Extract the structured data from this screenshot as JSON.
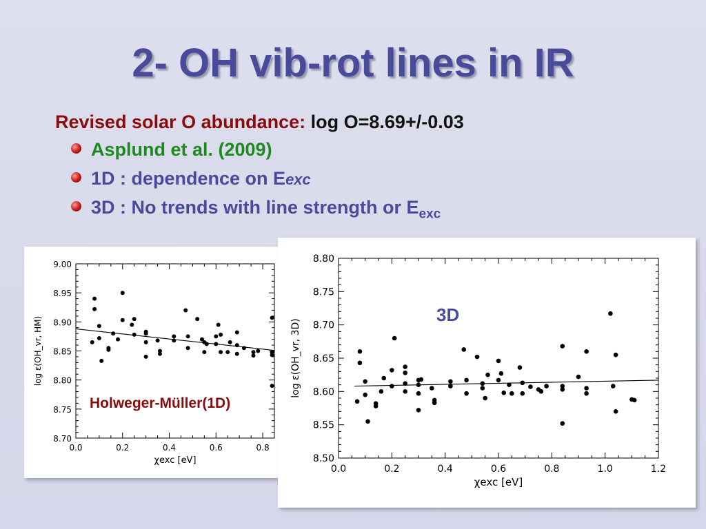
{
  "title": "2- OH vib-rot lines in IR",
  "header_line": {
    "label": "Revised solar O abundance:",
    "value": "log O=8.69+/-0.03"
  },
  "bullets": [
    {
      "text": "Asplund et al. (2009)"
    },
    {
      "text": "1D : dependence on E",
      "sub": "exc"
    },
    {
      "text": "3D : No trends with line strength or E",
      "sub": "exc"
    }
  ],
  "colors": {
    "title": "#4a4a9a",
    "red": "#8b0a0a",
    "green": "#1e8a1e"
  },
  "chart_data": [
    {
      "type": "scatter",
      "label": "Holweger-Müller(1D)",
      "xlabel": "χexc [eV]",
      "ylabel": "log ε(OH_vr, HM)",
      "xlim": [
        0.0,
        0.85
      ],
      "ylim": [
        8.7,
        9.0
      ],
      "xticks": [
        "0.0",
        "0.2",
        "0.4",
        "0.6",
        "0.8"
      ],
      "yticks": [
        "8.70",
        "8.75",
        "8.80",
        "8.85",
        "8.90",
        "8.95",
        "9.00"
      ],
      "fit": [
        [
          0.0,
          8.888
        ],
        [
          0.85,
          8.851
        ]
      ],
      "points": [
        [
          0.07,
          8.865
        ],
        [
          0.08,
          8.94
        ],
        [
          0.08,
          8.922
        ],
        [
          0.1,
          8.893
        ],
        [
          0.1,
          8.872
        ],
        [
          0.11,
          8.833
        ],
        [
          0.14,
          8.855
        ],
        [
          0.14,
          8.852
        ],
        [
          0.16,
          8.88
        ],
        [
          0.18,
          8.87
        ],
        [
          0.2,
          8.95
        ],
        [
          0.2,
          8.903
        ],
        [
          0.24,
          8.895
        ],
        [
          0.25,
          8.905
        ],
        [
          0.25,
          8.878
        ],
        [
          0.3,
          8.88
        ],
        [
          0.3,
          8.865
        ],
        [
          0.3,
          8.84
        ],
        [
          0.3,
          8.883
        ],
        [
          0.35,
          8.868
        ],
        [
          0.36,
          8.85
        ],
        [
          0.36,
          8.845
        ],
        [
          0.42,
          8.875
        ],
        [
          0.42,
          8.868
        ],
        [
          0.47,
          8.92
        ],
        [
          0.48,
          8.875
        ],
        [
          0.48,
          8.855
        ],
        [
          0.52,
          8.905
        ],
        [
          0.54,
          8.87
        ],
        [
          0.55,
          8.865
        ],
        [
          0.55,
          8.848
        ],
        [
          0.56,
          8.862
        ],
        [
          0.6,
          8.875
        ],
        [
          0.6,
          8.862
        ],
        [
          0.61,
          8.895
        ],
        [
          0.62,
          8.848
        ],
        [
          0.62,
          8.878
        ],
        [
          0.65,
          8.848
        ],
        [
          0.66,
          8.865
        ],
        [
          0.69,
          8.882
        ],
        [
          0.69,
          8.86
        ],
        [
          0.69,
          8.845
        ],
        [
          0.72,
          8.855
        ],
        [
          0.76,
          8.848
        ],
        [
          0.76,
          8.842
        ],
        [
          0.78,
          8.85
        ],
        [
          0.84,
          8.907
        ],
        [
          0.84,
          8.848
        ],
        [
          0.84,
          8.843
        ],
        [
          0.84,
          8.79
        ]
      ]
    },
    {
      "type": "scatter",
      "label": "3D",
      "xlabel": "χexc [eV]",
      "ylabel": "log ε(OH_vr, 3D)",
      "xlim": [
        0.0,
        1.2
      ],
      "ylim": [
        8.5,
        8.8
      ],
      "xticks": [
        "0.0",
        "0.2",
        "0.4",
        "0.6",
        "0.8",
        "1.0",
        "1.2"
      ],
      "yticks": [
        "8.50",
        "8.55",
        "8.60",
        "8.65",
        "8.70",
        "8.75",
        "8.80"
      ],
      "fit": [
        [
          0.06,
          8.608
        ],
        [
          1.2,
          8.617
        ]
      ],
      "points": [
        [
          0.07,
          8.585
        ],
        [
          0.08,
          8.66
        ],
        [
          0.08,
          8.643
        ],
        [
          0.1,
          8.615
        ],
        [
          0.1,
          8.595
        ],
        [
          0.11,
          8.555
        ],
        [
          0.14,
          8.582
        ],
        [
          0.14,
          8.578
        ],
        [
          0.16,
          8.6
        ],
        [
          0.17,
          8.62
        ],
        [
          0.2,
          8.632
        ],
        [
          0.2,
          8.608
        ],
        [
          0.21,
          8.68
        ],
        [
          0.25,
          8.637
        ],
        [
          0.25,
          8.628
        ],
        [
          0.25,
          8.6
        ],
        [
          0.25,
          8.612
        ],
        [
          0.3,
          8.617
        ],
        [
          0.3,
          8.61
        ],
        [
          0.3,
          8.597
        ],
        [
          0.3,
          8.572
        ],
        [
          0.31,
          8.618
        ],
        [
          0.35,
          8.605
        ],
        [
          0.36,
          8.587
        ],
        [
          0.36,
          8.583
        ],
        [
          0.42,
          8.615
        ],
        [
          0.42,
          8.608
        ],
        [
          0.47,
          8.663
        ],
        [
          0.48,
          8.617
        ],
        [
          0.48,
          8.597
        ],
        [
          0.52,
          8.652
        ],
        [
          0.54,
          8.612
        ],
        [
          0.54,
          8.605
        ],
        [
          0.55,
          8.59
        ],
        [
          0.56,
          8.625
        ],
        [
          0.6,
          8.646
        ],
        [
          0.6,
          8.617
        ],
        [
          0.61,
          8.627
        ],
        [
          0.62,
          8.598
        ],
        [
          0.64,
          8.61
        ],
        [
          0.65,
          8.597
        ],
        [
          0.68,
          8.636
        ],
        [
          0.69,
          8.613
        ],
        [
          0.69,
          8.597
        ],
        [
          0.72,
          8.607
        ],
        [
          0.75,
          8.603
        ],
        [
          0.76,
          8.6
        ],
        [
          0.78,
          8.608
        ],
        [
          0.84,
          8.668
        ],
        [
          0.84,
          8.608
        ],
        [
          0.84,
          8.603
        ],
        [
          0.84,
          8.552
        ],
        [
          0.9,
          8.622
        ],
        [
          0.93,
          8.66
        ],
        [
          0.93,
          8.605
        ],
        [
          0.93,
          8.597
        ],
        [
          1.02,
          8.717
        ],
        [
          1.03,
          8.608
        ],
        [
          1.04,
          8.655
        ],
        [
          1.04,
          8.57
        ],
        [
          1.1,
          8.588
        ],
        [
          1.11,
          8.587
        ]
      ]
    }
  ]
}
